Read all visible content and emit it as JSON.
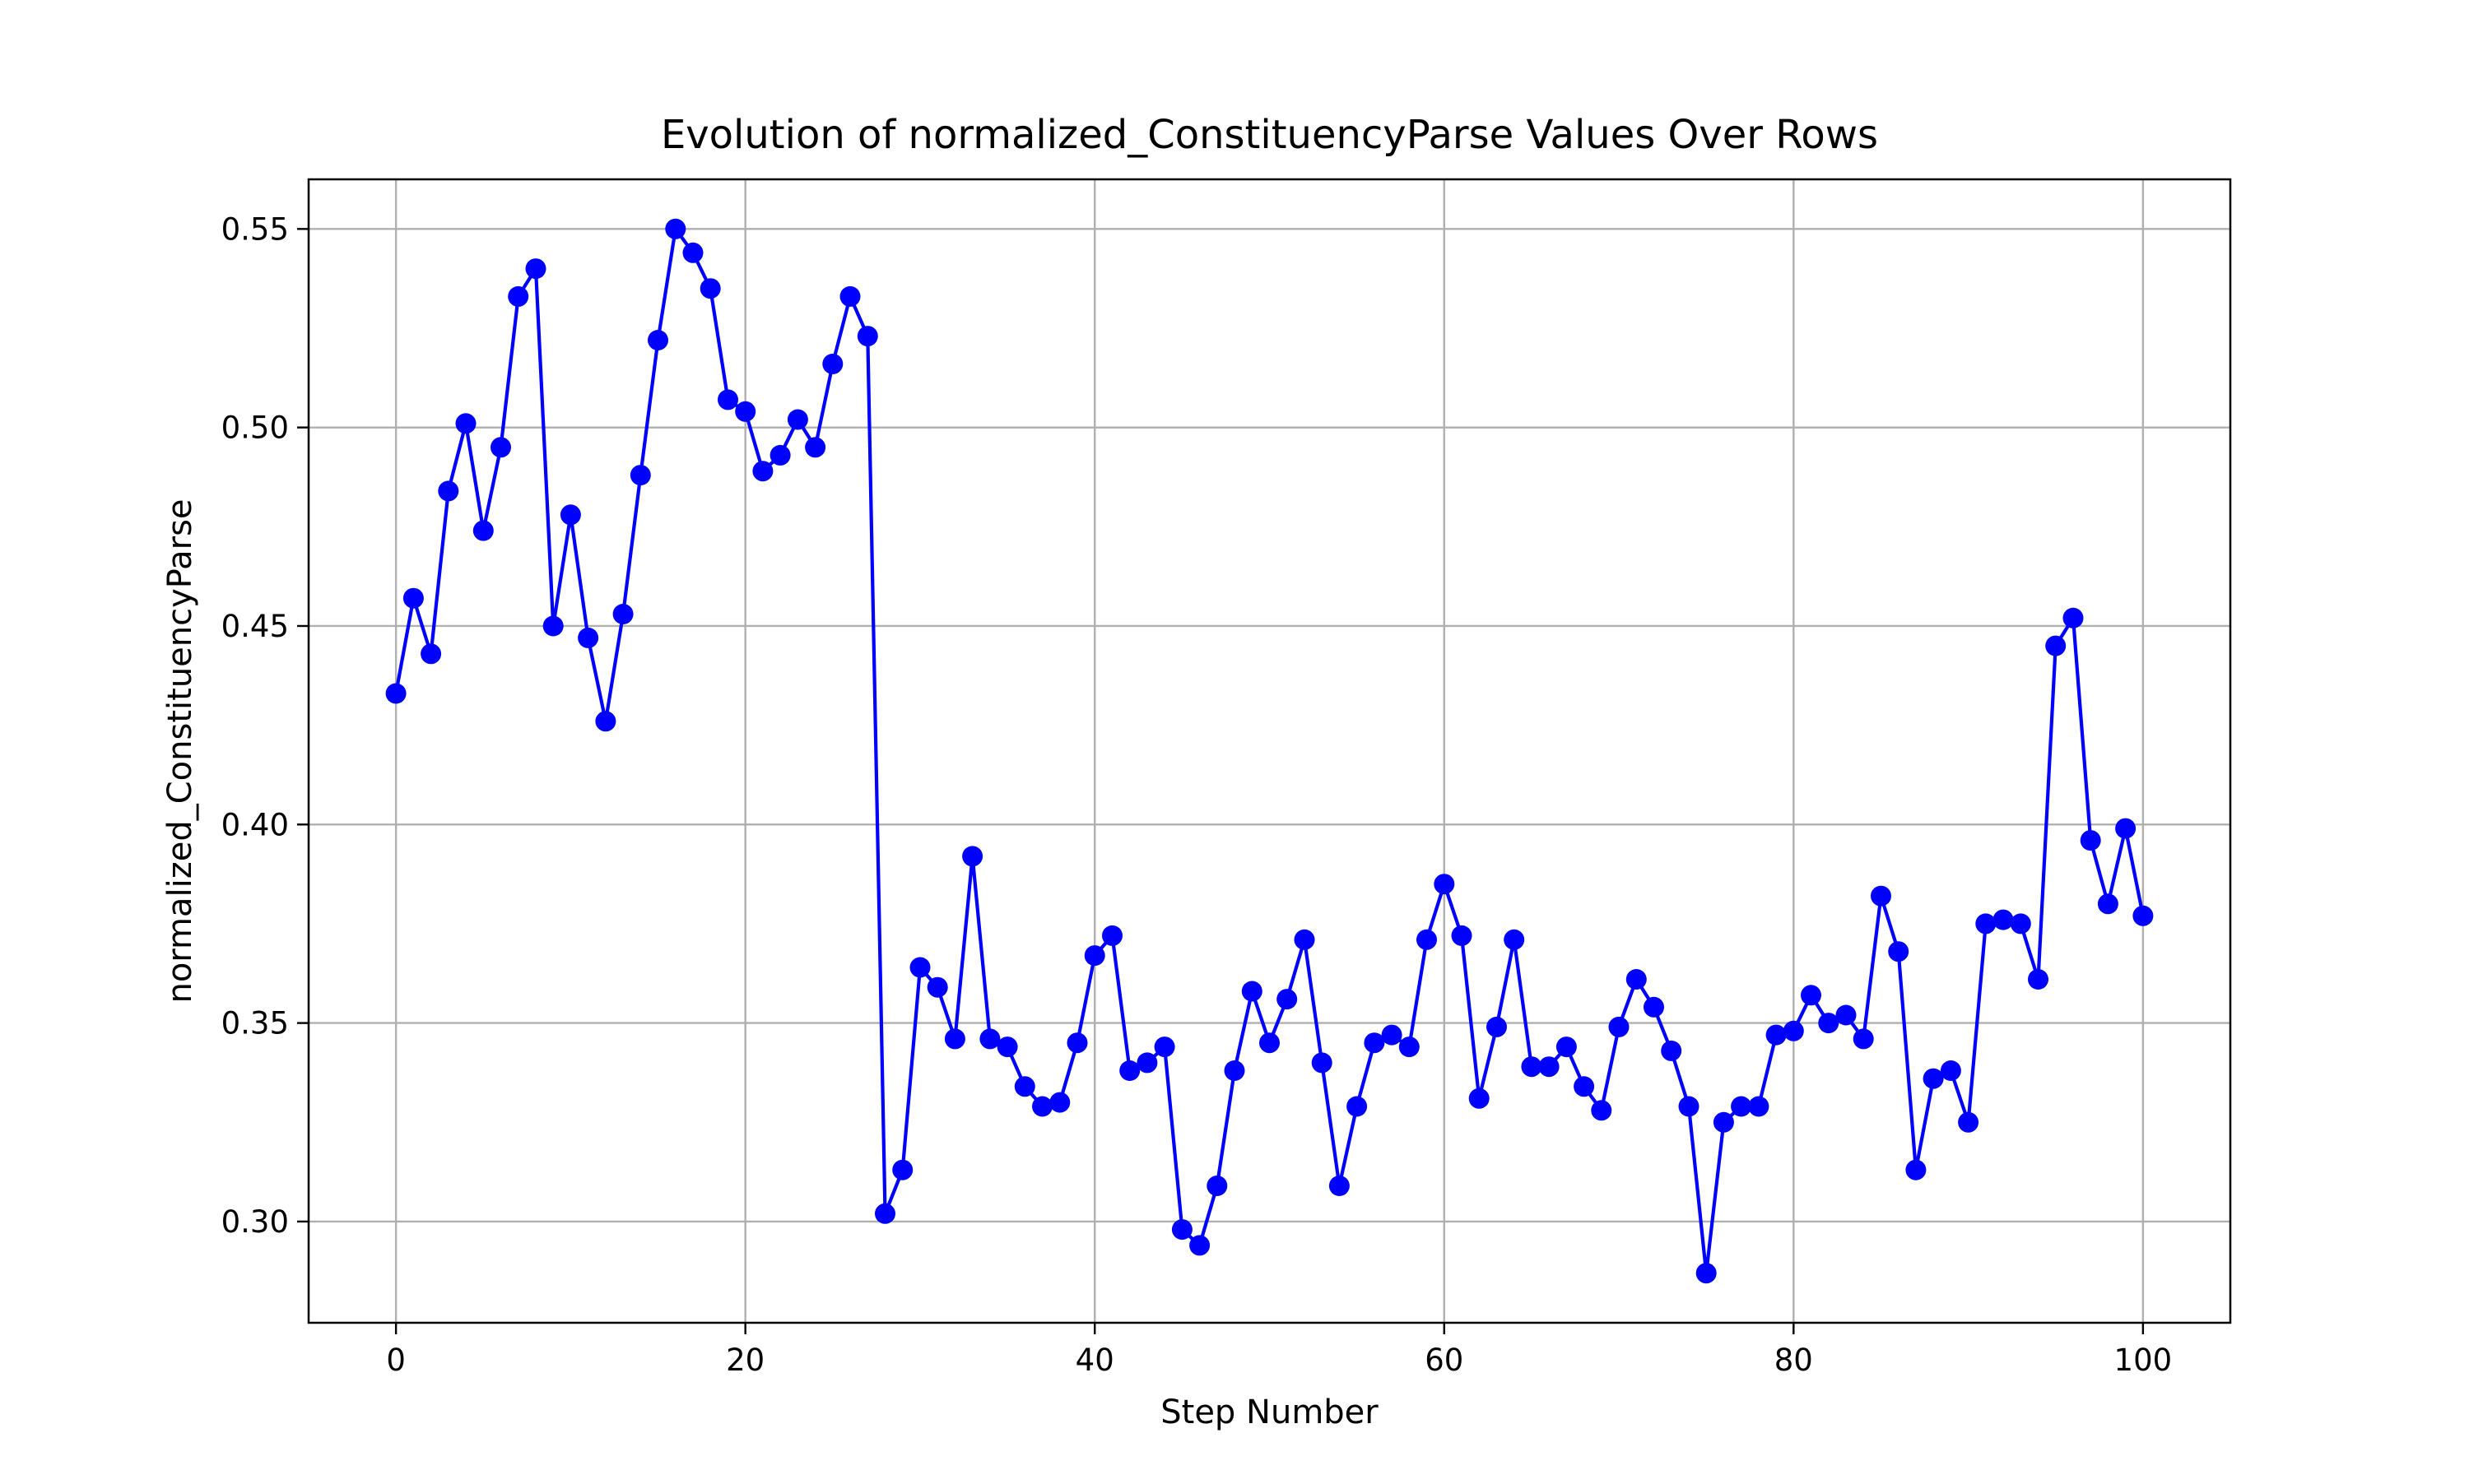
{
  "chart_data": {
    "type": "line",
    "title": "Evolution of normalized_ConstituencyParse Values Over Rows",
    "xlabel": "Step Number",
    "ylabel": "normalized_ConstituencyParse",
    "xlim": [
      -5,
      105
    ],
    "ylim": [
      0.2745,
      0.5625
    ],
    "xticks": [
      0,
      20,
      40,
      60,
      80,
      100
    ],
    "yticks": [
      0.3,
      0.35,
      0.4,
      0.45,
      0.5,
      0.55
    ],
    "xtick_labels": [
      "0",
      "20",
      "40",
      "60",
      "80",
      "100"
    ],
    "ytick_labels": [
      "0.30",
      "0.35",
      "0.40",
      "0.45",
      "0.50",
      "0.55"
    ],
    "grid": true,
    "line_color": "#0000ff",
    "series": [
      {
        "marker": "circle",
        "x": [
          0,
          1,
          2,
          3,
          4,
          5,
          6,
          7,
          8,
          9,
          10,
          11,
          12,
          13,
          14,
          15,
          16,
          17,
          18,
          19,
          20,
          21,
          22,
          23,
          24,
          25,
          26,
          27,
          28,
          29,
          30,
          31,
          32,
          33,
          34,
          35,
          36,
          37,
          38,
          39,
          40,
          41,
          42,
          43,
          44,
          45,
          46,
          47,
          48,
          49,
          50,
          51,
          52,
          53,
          54,
          55,
          56,
          57,
          58,
          59,
          60,
          61,
          62,
          63,
          64,
          65,
          66,
          67,
          68,
          69,
          70,
          71,
          72,
          73,
          74,
          75,
          76,
          77,
          78,
          79,
          80,
          81,
          82,
          83,
          84,
          85,
          86,
          87,
          88,
          89,
          90,
          91,
          92,
          93,
          94,
          95,
          96,
          97,
          98,
          99,
          100
        ],
        "values": [
          0.433,
          0.457,
          0.443,
          0.484,
          0.501,
          0.474,
          0.495,
          0.533,
          0.54,
          0.45,
          0.478,
          0.447,
          0.426,
          0.453,
          0.488,
          0.522,
          0.55,
          0.544,
          0.535,
          0.507,
          0.504,
          0.489,
          0.493,
          0.502,
          0.495,
          0.516,
          0.533,
          0.523,
          0.302,
          0.313,
          0.364,
          0.359,
          0.346,
          0.392,
          0.346,
          0.344,
          0.334,
          0.329,
          0.33,
          0.345,
          0.367,
          0.372,
          0.338,
          0.34,
          0.344,
          0.298,
          0.294,
          0.309,
          0.338,
          0.358,
          0.345,
          0.356,
          0.371,
          0.34,
          0.309,
          0.329,
          0.345,
          0.347,
          0.344,
          0.371,
          0.385,
          0.372,
          0.331,
          0.349,
          0.371,
          0.339,
          0.339,
          0.344,
          0.334,
          0.328,
          0.349,
          0.361,
          0.354,
          0.343,
          0.329,
          0.287,
          0.325,
          0.329,
          0.329,
          0.347,
          0.348,
          0.357,
          0.35,
          0.352,
          0.346,
          0.382,
          0.368,
          0.313,
          0.336,
          0.338,
          0.325,
          0.375,
          0.376,
          0.375,
          0.361,
          0.445,
          0.452,
          0.396,
          0.38,
          0.399,
          0.377
        ]
      }
    ]
  }
}
